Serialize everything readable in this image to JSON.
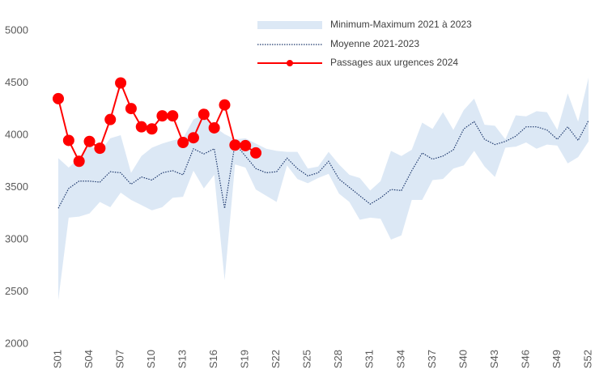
{
  "chart_data": {
    "type": "line",
    "categories": [
      "S01",
      null,
      null,
      "S04",
      null,
      null,
      "S07",
      null,
      null,
      "S10",
      null,
      null,
      "S13",
      null,
      null,
      "S16",
      null,
      null,
      "S19",
      null,
      null,
      "S22",
      null,
      null,
      "S25",
      null,
      null,
      "S28",
      null,
      null,
      "S31",
      null,
      null,
      "S34",
      null,
      null,
      "S37",
      null,
      null,
      "S40",
      null,
      null,
      "S43",
      null,
      null,
      "S46",
      null,
      null,
      "S49",
      null,
      null,
      "S52"
    ],
    "ylim": [
      2000,
      5000
    ],
    "yticks": [
      2000,
      2500,
      3000,
      3500,
      4000,
      4500,
      5000
    ],
    "grid": false,
    "legend": "top-right",
    "series": [
      {
        "name": "Minimum-Maximum 2021 à 2023",
        "type": "band",
        "color": "#dce8f5",
        "low": [
          2420,
          3210,
          3220,
          3250,
          3360,
          3310,
          3450,
          3380,
          3330,
          3280,
          3310,
          3400,
          3410,
          3660,
          3490,
          3620,
          2610,
          3720,
          3690,
          3480,
          3420,
          3360,
          3710,
          3580,
          3540,
          3590,
          3630,
          3440,
          3360,
          3190,
          3210,
          3200,
          3000,
          3040,
          3380,
          3380,
          3570,
          3580,
          3680,
          3710,
          3850,
          3700,
          3600,
          3880,
          3890,
          3930,
          3870,
          3910,
          3900,
          3730,
          3790,
          3940
        ],
        "high": [
          3780,
          3690,
          3780,
          3900,
          3840,
          3970,
          4000,
          3640,
          3800,
          3880,
          3920,
          3950,
          3970,
          4150,
          4200,
          4080,
          4010,
          3960,
          3970,
          3920,
          3870,
          3850,
          3840,
          3840,
          3680,
          3700,
          3840,
          3720,
          3620,
          3590,
          3470,
          3560,
          3850,
          3800,
          3860,
          4120,
          4060,
          4220,
          4050,
          4240,
          4350,
          4100,
          4090,
          3960,
          4190,
          4180,
          4230,
          4220,
          4050,
          4400,
          4130,
          4550
        ]
      },
      {
        "name": "Moyenne 2021-2023",
        "type": "dotted",
        "color": "#1f3a6e",
        "values": [
          3300,
          3490,
          3560,
          3560,
          3550,
          3650,
          3640,
          3530,
          3600,
          3570,
          3640,
          3660,
          3620,
          3870,
          3820,
          3870,
          3300,
          3920,
          3800,
          3680,
          3640,
          3650,
          3780,
          3680,
          3610,
          3640,
          3750,
          3580,
          3500,
          3420,
          3340,
          3400,
          3480,
          3470,
          3660,
          3830,
          3770,
          3800,
          3860,
          4060,
          4130,
          3960,
          3910,
          3940,
          3990,
          4080,
          4080,
          4050,
          3960,
          4080,
          3950,
          4140
        ]
      },
      {
        "name": "Passages aux urgences 2024",
        "type": "marker-line",
        "color": "#ff0000",
        "values": [
          4350,
          3950,
          3750,
          3940,
          3875,
          4150,
          4500,
          4255,
          4080,
          4060,
          4185,
          4185,
          3930,
          3975,
          4200,
          4070,
          4290,
          3905,
          3900,
          3830,
          null,
          null,
          null,
          null,
          null,
          null,
          null,
          null,
          null,
          null,
          null,
          null,
          null,
          null,
          null,
          null,
          null,
          null,
          null,
          null,
          null,
          null,
          null,
          null,
          null,
          null,
          null,
          null,
          null,
          null,
          null,
          null
        ]
      }
    ]
  }
}
